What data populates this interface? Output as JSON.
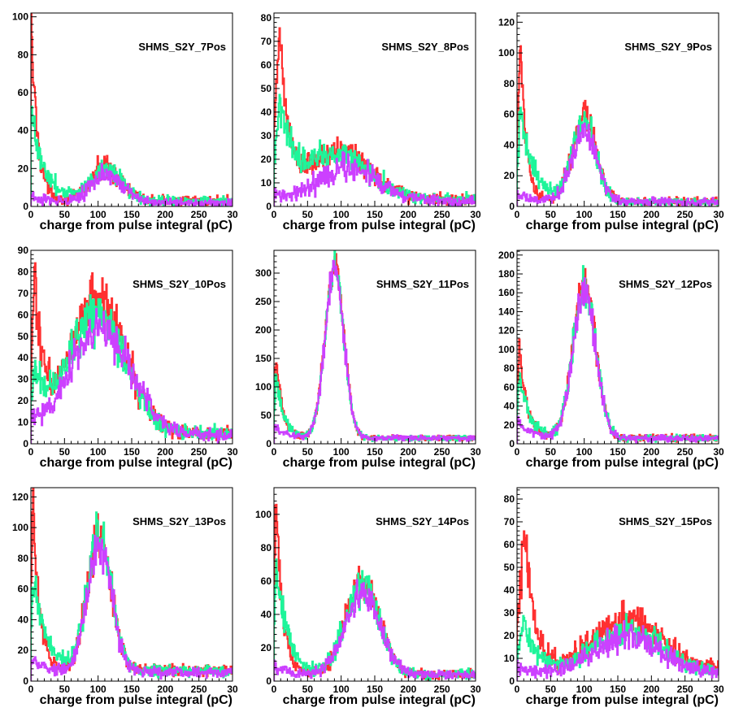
{
  "colors": {
    "red": "#ff3030",
    "green": "#1ef59a",
    "magenta": "#cc40ff",
    "axis": "#000000"
  },
  "chart_data": [
    {
      "type": "histogram",
      "title": "SHMS_S2Y_7Pos",
      "xlabel": "charge from pulse integral (pC)",
      "xlim": [
        0,
        300
      ],
      "ylim": [
        0,
        102
      ],
      "xticks": [
        "0",
        "50",
        "100",
        "150",
        "200",
        "250",
        "30"
      ],
      "yticks": [
        "0",
        "20",
        "40",
        "60",
        "80",
        "100"
      ],
      "ytick_values": [
        0,
        20,
        40,
        60,
        80,
        100
      ],
      "series": [
        {
          "color": "red",
          "shape": {
            "peak": 0,
            "peak_height": 95,
            "decay": 10,
            "bump_center": 112,
            "bump_height": 18,
            "bump_width": 22,
            "floor": 3
          }
        },
        {
          "color": "green",
          "shape": {
            "peak": 0,
            "peak_height": 48,
            "decay": 20,
            "bump_center": 112,
            "bump_height": 17,
            "bump_width": 24,
            "floor": 3
          }
        },
        {
          "color": "magenta",
          "shape": {
            "peak": 0,
            "peak_height": 5,
            "decay": 20,
            "bump_center": 112,
            "bump_height": 14,
            "bump_width": 25,
            "floor": 2
          }
        }
      ]
    },
    {
      "type": "histogram",
      "title": "SHMS_S2Y_8Pos",
      "xlabel": "charge from pulse integral (pC)",
      "xlim": [
        0,
        300
      ],
      "ylim": [
        0,
        82
      ],
      "xticks": [
        "0",
        "50",
        "100",
        "150",
        "200",
        "250",
        "30"
      ],
      "yticks": [
        "0",
        "10",
        "20",
        "30",
        "40",
        "50",
        "60",
        "70",
        "80"
      ],
      "ytick_values": [
        0,
        10,
        20,
        30,
        40,
        50,
        60,
        70,
        80
      ],
      "series": [
        {
          "color": "red",
          "shape": {
            "peak": 8,
            "peak_height": 70,
            "decay": 14,
            "bump_center": 100,
            "bump_height": 20,
            "bump_width": 45,
            "floor": 3
          }
        },
        {
          "color": "green",
          "shape": {
            "peak": 8,
            "peak_height": 40,
            "decay": 25,
            "bump_center": 100,
            "bump_height": 17,
            "bump_width": 45,
            "floor": 3
          }
        },
        {
          "color": "magenta",
          "shape": {
            "peak": 0,
            "peak_height": 3,
            "decay": 20,
            "bump_center": 110,
            "bump_height": 14,
            "bump_width": 45,
            "floor": 2
          }
        }
      ]
    },
    {
      "type": "histogram",
      "title": "SHMS_S2Y_9Pos",
      "xlabel": "charge from pulse integral (pC)",
      "xlim": [
        0,
        300
      ],
      "ylim": [
        0,
        126
      ],
      "xticks": [
        "0",
        "50",
        "100",
        "150",
        "200",
        "250",
        "30"
      ],
      "yticks": [
        "0",
        "20",
        "40",
        "60",
        "80",
        "100",
        "120"
      ],
      "ytick_values": [
        0,
        20,
        40,
        60,
        80,
        100,
        120
      ],
      "series": [
        {
          "color": "red",
          "shape": {
            "peak": 5,
            "peak_height": 110,
            "decay": 9,
            "bump_center": 100,
            "bump_height": 55,
            "bump_width": 18,
            "floor": 3
          }
        },
        {
          "color": "green",
          "shape": {
            "peak": 5,
            "peak_height": 60,
            "decay": 20,
            "bump_center": 100,
            "bump_height": 52,
            "bump_width": 18,
            "floor": 3
          }
        },
        {
          "color": "magenta",
          "shape": {
            "peak": 0,
            "peak_height": 5,
            "decay": 20,
            "bump_center": 100,
            "bump_height": 45,
            "bump_width": 19,
            "floor": 3
          }
        }
      ]
    },
    {
      "type": "histogram",
      "title": "SHMS_S2Y_10Pos",
      "xlabel": "charge from pulse integral (pC)",
      "xlim": [
        0,
        300
      ],
      "ylim": [
        0,
        90
      ],
      "xticks": [
        "0",
        "50",
        "100",
        "150",
        "200",
        "250",
        "30"
      ],
      "yticks": [
        "0",
        "10",
        "20",
        "30",
        "40",
        "50",
        "60",
        "70",
        "80",
        "90"
      ],
      "ytick_values": [
        0,
        10,
        20,
        30,
        40,
        50,
        60,
        70,
        80,
        90
      ],
      "series": [
        {
          "color": "red",
          "shape": {
            "peak": 5,
            "peak_height": 70,
            "decay": 14,
            "bump_center": 100,
            "bump_height": 63,
            "bump_width": 40,
            "floor": 5
          }
        },
        {
          "color": "green",
          "shape": {
            "peak": 5,
            "peak_height": 30,
            "decay": 20,
            "bump_center": 100,
            "bump_height": 55,
            "bump_width": 42,
            "floor": 5
          }
        },
        {
          "color": "magenta",
          "shape": {
            "peak": 0,
            "peak_height": 5,
            "decay": 20,
            "bump_center": 105,
            "bump_height": 50,
            "bump_width": 45,
            "floor": 4
          }
        }
      ]
    },
    {
      "type": "histogram",
      "title": "SHMS_S2Y_11Pos",
      "xlabel": "charge from pulse integral (pC)",
      "xlim": [
        0,
        300
      ],
      "ylim": [
        0,
        340
      ],
      "xticks": [
        "0",
        "50",
        "100",
        "150",
        "200",
        "250",
        "30"
      ],
      "yticks": [
        "0",
        "50",
        "100",
        "150",
        "200",
        "250",
        "300"
      ],
      "ytick_values": [
        0,
        50,
        100,
        150,
        200,
        250,
        300
      ],
      "series": [
        {
          "color": "red",
          "shape": {
            "peak": 3,
            "peak_height": 140,
            "decay": 10,
            "bump_center": 90,
            "bump_height": 305,
            "bump_width": 14,
            "floor": 10
          }
        },
        {
          "color": "green",
          "shape": {
            "peak": 3,
            "peak_height": 110,
            "decay": 12,
            "bump_center": 90,
            "bump_height": 300,
            "bump_width": 14,
            "floor": 10
          }
        },
        {
          "color": "magenta",
          "shape": {
            "peak": 0,
            "peak_height": 20,
            "decay": 20,
            "bump_center": 90,
            "bump_height": 298,
            "bump_width": 14,
            "floor": 10
          }
        }
      ]
    },
    {
      "type": "histogram",
      "title": "SHMS_S2Y_12Pos",
      "xlabel": "charge from pulse integral (pC)",
      "xlim": [
        0,
        300
      ],
      "ylim": [
        0,
        205
      ],
      "xticks": [
        "0",
        "50",
        "100",
        "150",
        "200",
        "250",
        "30"
      ],
      "yticks": [
        "0",
        "20",
        "40",
        "60",
        "80",
        "100",
        "120",
        "140",
        "160",
        "180",
        "200"
      ],
      "ytick_values": [
        0,
        20,
        40,
        60,
        80,
        100,
        120,
        140,
        160,
        180,
        200
      ],
      "series": [
        {
          "color": "red",
          "shape": {
            "peak": 3,
            "peak_height": 95,
            "decay": 12,
            "bump_center": 100,
            "bump_height": 165,
            "bump_width": 17,
            "floor": 6
          }
        },
        {
          "color": "green",
          "shape": {
            "peak": 3,
            "peak_height": 70,
            "decay": 15,
            "bump_center": 100,
            "bump_height": 160,
            "bump_width": 17,
            "floor": 6
          }
        },
        {
          "color": "magenta",
          "shape": {
            "peak": 0,
            "peak_height": 20,
            "decay": 18,
            "bump_center": 100,
            "bump_height": 155,
            "bump_width": 17,
            "floor": 6
          }
        }
      ]
    },
    {
      "type": "histogram",
      "title": "SHMS_S2Y_13Pos",
      "xlabel": "charge from pulse integral (pC)",
      "xlim": [
        0,
        300
      ],
      "ylim": [
        0,
        126
      ],
      "xticks": [
        "0",
        "50",
        "100",
        "150",
        "200",
        "250",
        "30"
      ],
      "yticks": [
        "0",
        "20",
        "40",
        "60",
        "80",
        "100",
        "120"
      ],
      "ytick_values": [
        0,
        20,
        40,
        60,
        80,
        100,
        120
      ],
      "series": [
        {
          "color": "red",
          "shape": {
            "peak": 3,
            "peak_height": 115,
            "decay": 10,
            "bump_center": 102,
            "bump_height": 90,
            "bump_width": 18,
            "floor": 7
          }
        },
        {
          "color": "green",
          "shape": {
            "peak": 3,
            "peak_height": 60,
            "decay": 20,
            "bump_center": 102,
            "bump_height": 88,
            "bump_width": 18,
            "floor": 7
          }
        },
        {
          "color": "magenta",
          "shape": {
            "peak": 0,
            "peak_height": 8,
            "decay": 20,
            "bump_center": 102,
            "bump_height": 82,
            "bump_width": 18,
            "floor": 6
          }
        }
      ]
    },
    {
      "type": "histogram",
      "title": "SHMS_S2Y_14Pos",
      "xlabel": "charge from pulse integral (pC)",
      "xlim": [
        0,
        300
      ],
      "ylim": [
        0,
        116
      ],
      "xticks": [
        "0",
        "50",
        "100",
        "150",
        "200",
        "250",
        "30"
      ],
      "yticks": [
        "0",
        "20",
        "40",
        "60",
        "80",
        "100"
      ],
      "ytick_values": [
        0,
        20,
        40,
        60,
        80,
        100
      ],
      "series": [
        {
          "color": "red",
          "shape": {
            "peak": 3,
            "peak_height": 105,
            "decay": 10,
            "bump_center": 132,
            "bump_height": 56,
            "bump_width": 25,
            "floor": 4
          }
        },
        {
          "color": "green",
          "shape": {
            "peak": 3,
            "peak_height": 65,
            "decay": 18,
            "bump_center": 132,
            "bump_height": 53,
            "bump_width": 25,
            "floor": 4
          }
        },
        {
          "color": "magenta",
          "shape": {
            "peak": 0,
            "peak_height": 5,
            "decay": 20,
            "bump_center": 132,
            "bump_height": 48,
            "bump_width": 26,
            "floor": 4
          }
        }
      ]
    },
    {
      "type": "histogram",
      "title": "SHMS_S2Y_15Pos",
      "xlabel": "charge from pulse integral (pC)",
      "xlim": [
        0,
        300
      ],
      "ylim": [
        0,
        85
      ],
      "xticks": [
        "0",
        "50",
        "100",
        "150",
        "200",
        "250",
        "30"
      ],
      "yticks": [
        "0",
        "10",
        "20",
        "30",
        "40",
        "50",
        "60",
        "70",
        "80"
      ],
      "ytick_values": [
        0,
        10,
        20,
        30,
        40,
        50,
        60,
        70,
        80
      ],
      "series": [
        {
          "color": "red",
          "shape": {
            "peak": 12,
            "peak_height": 62,
            "decay": 14,
            "bump_center": 165,
            "bump_height": 22,
            "bump_width": 50,
            "floor": 5
          }
        },
        {
          "color": "green",
          "shape": {
            "peak": 10,
            "peak_height": 22,
            "decay": 20,
            "bump_center": 165,
            "bump_height": 18,
            "bump_width": 50,
            "floor": 4
          }
        },
        {
          "color": "magenta",
          "shape": {
            "peak": 0,
            "peak_height": 3,
            "decay": 20,
            "bump_center": 165,
            "bump_height": 16,
            "bump_width": 50,
            "floor": 3
          }
        }
      ]
    }
  ]
}
